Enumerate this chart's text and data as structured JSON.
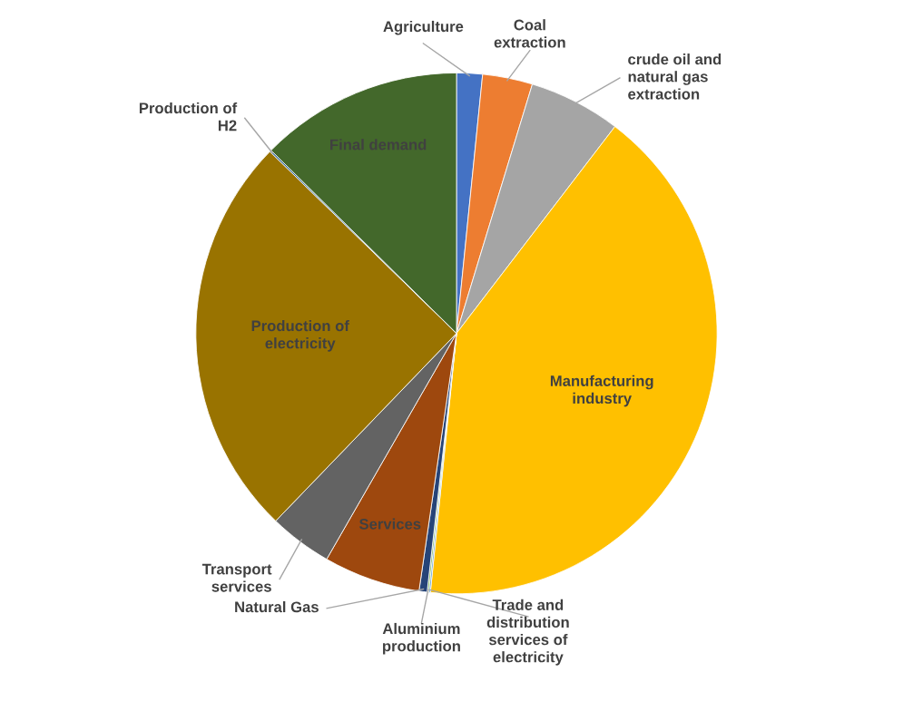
{
  "chart_data": {
    "type": "pie",
    "categories": [
      "Agriculture",
      "Coal extraction",
      "crude oil and natural gas extraction",
      "Manufacturing industry",
      "Trade and distribution services of electricity",
      "Aluminium production",
      "Natural Gas",
      "Services",
      "Transport services",
      "Production of electricity",
      "Production of H2",
      "Final demand"
    ],
    "values": [
      1.6,
      3.1,
      5.7,
      41.2,
      0.1,
      0.1,
      0.5,
      6.0,
      3.9,
      25.1,
      0.1,
      12.6
    ],
    "colors": [
      "#4472c4",
      "#ed7d31",
      "#a5a5a5",
      "#ffc000",
      "#5b9bd5",
      "#70ad47",
      "#264478",
      "#9e480e",
      "#636363",
      "#997300",
      "#255e91",
      "#43682b"
    ],
    "legend": false
  }
}
